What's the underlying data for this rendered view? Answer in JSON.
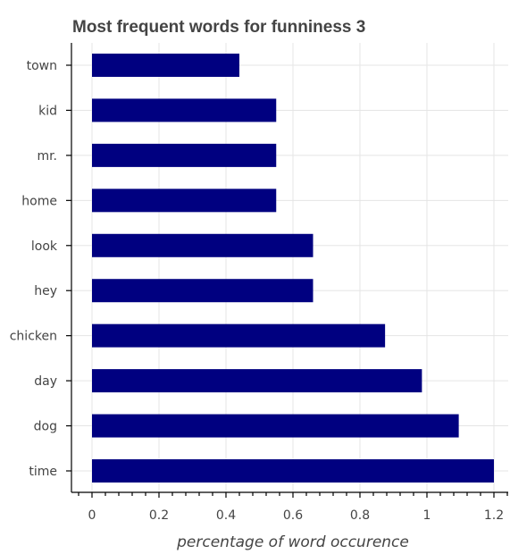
{
  "chart_data": {
    "type": "bar",
    "orientation": "horizontal",
    "title": "Most frequent words for funniness 3",
    "xlabel": "percentage of word occurence",
    "ylabel": "",
    "categories": [
      "town",
      "kid",
      "mr.",
      "home",
      "look",
      "hey",
      "chicken",
      "day",
      "dog",
      "time"
    ],
    "values": [
      0.44,
      0.55,
      0.55,
      0.55,
      0.66,
      0.66,
      0.875,
      0.985,
      1.095,
      1.2
    ],
    "xlim": [
      -0.06,
      1.24
    ],
    "xticks": [
      0,
      0.2,
      0.4,
      0.6,
      0.8,
      1,
      1.2
    ],
    "xtick_labels": [
      "0",
      "0.2",
      "0.4",
      "0.6",
      "0.8",
      "1",
      "1.2"
    ],
    "grid": true,
    "bar_color": "#000080"
  }
}
